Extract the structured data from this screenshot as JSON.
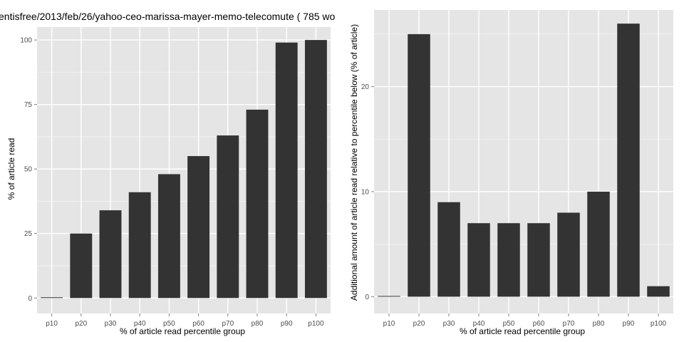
{
  "chart_data": [
    {
      "type": "bar",
      "title": "entisfree/2013/feb/26/yahoo-ceo-marissa-mayer-memo-telecomute ( 785 wo",
      "xlabel": "% of article read percentile group",
      "ylabel": "% of article read",
      "categories": [
        "p10",
        "p20",
        "p30",
        "p40",
        "p50",
        "p60",
        "p70",
        "p80",
        "p90",
        "p100"
      ],
      "values": [
        0,
        25,
        34,
        41,
        48,
        55,
        63,
        73,
        99,
        100
      ],
      "ylim": [
        -6,
        105
      ],
      "yticks": [
        0,
        25,
        50,
        75,
        100
      ],
      "grid": true,
      "colors": {
        "panel": "#e5e5e5",
        "bar": "#333333",
        "grid": "#ffffff",
        "tick": "#4d4d4d"
      }
    },
    {
      "type": "bar",
      "title": "",
      "xlabel": "% of article read percentile group",
      "ylabel": "Additional amount of article read relative to percentile below (% of article)",
      "categories": [
        "p10",
        "p20",
        "p30",
        "p40",
        "p50",
        "p60",
        "p70",
        "p80",
        "p90",
        "p100"
      ],
      "values": [
        0,
        25,
        9,
        7,
        7,
        7,
        8,
        10,
        26,
        1
      ],
      "ylim": [
        -1.6,
        27.3
      ],
      "yticks": [
        0,
        10,
        20
      ],
      "grid": true,
      "colors": {
        "panel": "#e5e5e5",
        "bar": "#333333",
        "grid": "#ffffff",
        "tick": "#4d4d4d"
      }
    }
  ]
}
